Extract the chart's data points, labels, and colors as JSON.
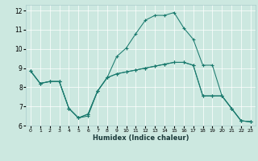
{
  "xlabel": "Humidex (Indice chaleur)",
  "xlim": [
    -0.5,
    23.5
  ],
  "ylim": [
    6,
    12.3
  ],
  "yticks": [
    6,
    7,
    8,
    9,
    10,
    11,
    12
  ],
  "xticks": [
    0,
    1,
    2,
    3,
    4,
    5,
    6,
    7,
    8,
    9,
    10,
    11,
    12,
    13,
    14,
    15,
    16,
    17,
    18,
    19,
    20,
    21,
    22,
    23
  ],
  "bg_color": "#cce8e0",
  "line_color": "#1a7a6e",
  "line1_x": [
    0,
    1,
    2,
    3,
    4,
    5,
    6,
    7,
    8,
    9,
    10,
    11,
    12,
    13,
    14,
    15,
    16,
    17,
    18,
    19,
    20,
    21,
    22,
    23
  ],
  "line1_y": [
    8.85,
    8.2,
    8.3,
    8.3,
    6.9,
    6.4,
    6.6,
    7.8,
    8.5,
    8.7,
    8.8,
    8.9,
    9.0,
    9.1,
    9.2,
    9.3,
    9.3,
    9.15,
    7.55,
    7.55,
    7.55,
    6.9,
    6.25,
    6.2
  ],
  "line2_x": [
    0,
    1,
    2,
    3,
    4,
    5,
    6,
    7,
    8,
    9,
    10,
    11,
    12,
    13,
    14,
    15,
    16,
    17,
    18,
    19,
    20,
    21,
    22,
    23
  ],
  "line2_y": [
    8.85,
    8.2,
    8.3,
    8.3,
    6.9,
    6.4,
    6.6,
    7.8,
    8.5,
    9.6,
    10.05,
    10.8,
    11.5,
    11.75,
    11.75,
    11.9,
    11.1,
    10.5,
    9.15,
    9.15,
    7.55,
    6.9,
    6.25,
    6.2
  ],
  "line3_x": [
    0,
    1,
    2,
    3,
    4,
    5,
    6,
    7,
    8,
    9,
    10,
    11,
    12,
    13,
    14,
    15,
    16,
    17,
    18,
    19,
    20,
    21,
    22,
    23
  ],
  "line3_y": [
    8.85,
    8.2,
    8.3,
    8.3,
    6.9,
    6.4,
    6.5,
    7.8,
    8.5,
    8.7,
    8.8,
    8.9,
    9.0,
    9.1,
    9.2,
    9.3,
    9.3,
    9.15,
    7.55,
    7.55,
    7.55,
    6.9,
    6.25,
    6.2
  ]
}
